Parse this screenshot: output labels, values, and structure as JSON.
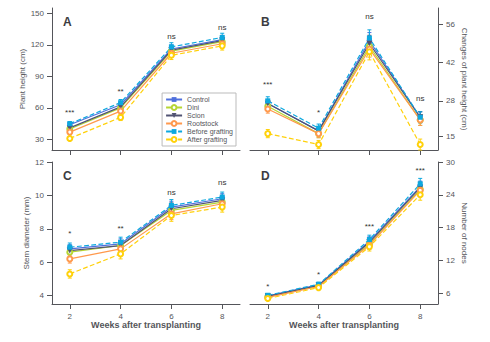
{
  "chart_data": [
    {
      "type": "line",
      "title": "A",
      "ylabel": "Plant height (cm)",
      "x": [
        2,
        4,
        6,
        8
      ],
      "xlim": [
        1.3,
        8.7
      ],
      "xticks": [
        2,
        4,
        6,
        8
      ],
      "ylim": [
        20,
        155
      ],
      "yticks": [
        30,
        60,
        90,
        120,
        150
      ],
      "grid": false,
      "tick_labels": "y",
      "legend": "lower right",
      "series": [
        {
          "name": "Control",
          "values": [
            44,
            63,
            116,
            125
          ],
          "errors": [
            2,
            3,
            4,
            4
          ],
          "marker": "square",
          "line_style": "solid"
        },
        {
          "name": "Dini",
          "values": [
            40,
            60,
            114,
            123
          ],
          "errors": [
            2,
            3,
            4,
            4
          ],
          "marker": "open circle",
          "line_style": "solid"
        },
        {
          "name": "Scion",
          "values": [
            41,
            61,
            115,
            124
          ],
          "errors": [
            2,
            3,
            4,
            4
          ],
          "marker": "triangle down",
          "line_style": "solid"
        },
        {
          "name": "Rootstock",
          "values": [
            37,
            57,
            112,
            121
          ],
          "errors": [
            2,
            3,
            4,
            4
          ],
          "marker": "open circle",
          "line_style": "solid"
        },
        {
          "name": "Before grafting",
          "values": [
            45,
            65,
            118,
            127
          ],
          "errors": [
            2,
            3,
            4,
            4
          ],
          "marker": "square",
          "line_style": "dashed"
        },
        {
          "name": "After grafting",
          "values": [
            31,
            51,
            110,
            119
          ],
          "errors": [
            2,
            3,
            4,
            4
          ],
          "marker": "open circle",
          "line_style": "dashed"
        }
      ],
      "annotations": [
        {
          "x": 2,
          "y": 51,
          "text": "***"
        },
        {
          "x": 4,
          "y": 71,
          "text": "**"
        },
        {
          "x": 6,
          "y": 123,
          "text": "ns"
        },
        {
          "x": 8,
          "y": 132,
          "text": "ns"
        }
      ]
    },
    {
      "type": "line",
      "title": "B",
      "ylabel": "Changes of plant height (cm)",
      "x": [
        2,
        4,
        6,
        8
      ],
      "xlim": [
        1.3,
        8.7
      ],
      "xticks": [
        2,
        4,
        6,
        8
      ],
      "ylim": [
        10,
        62
      ],
      "yticks": [
        15,
        28,
        42,
        56
      ],
      "grid": false,
      "tick_labels": "y",
      "series": [
        {
          "name": "Control",
          "values": [
            27,
            17,
            50,
            22
          ],
          "errors": [
            1.5,
            1.5,
            3,
            2
          ],
          "marker": "square",
          "line_style": "solid"
        },
        {
          "name": "Dini",
          "values": [
            26,
            16,
            48,
            21
          ],
          "errors": [
            1.5,
            1.5,
            3,
            2
          ],
          "marker": "open circle",
          "line_style": "solid"
        },
        {
          "name": "Scion",
          "values": [
            27,
            17,
            49,
            22
          ],
          "errors": [
            1.5,
            1.5,
            3,
            2
          ],
          "marker": "triangle down",
          "line_style": "solid"
        },
        {
          "name": "Rootstock",
          "values": [
            25,
            16,
            47,
            21
          ],
          "errors": [
            1.5,
            1.5,
            3,
            2
          ],
          "marker": "open circle",
          "line_style": "solid"
        },
        {
          "name": "Before grafting",
          "values": [
            28,
            18,
            51,
            22
          ],
          "errors": [
            1.5,
            1.5,
            3,
            2
          ],
          "marker": "square",
          "line_style": "dashed"
        },
        {
          "name": "After grafting",
          "values": [
            16,
            12,
            46,
            12
          ],
          "errors": [
            1.5,
            1.5,
            3,
            2
          ],
          "marker": "open circle",
          "line_style": "dashed"
        }
      ],
      "annotations": [
        {
          "x": 2,
          "y": 32,
          "text": "***"
        },
        {
          "x": 4,
          "y": 22,
          "text": "*"
        },
        {
          "x": 6,
          "y": 57,
          "text": "ns"
        },
        {
          "x": 8,
          "y": 27,
          "text": "ns"
        }
      ]
    },
    {
      "type": "line",
      "title": "C",
      "ylabel": "Stem diameter (mm)",
      "xlabel": "Weeks after transplanting",
      "x": [
        2,
        4,
        6,
        8
      ],
      "xlim": [
        1.3,
        8.7
      ],
      "xticks": [
        2,
        4,
        6,
        8
      ],
      "ylim": [
        3.5,
        12
      ],
      "yticks": [
        4,
        6,
        8,
        10,
        12
      ],
      "grid": false,
      "series": [
        {
          "name": "Control",
          "values": [
            6.8,
            7.1,
            9.3,
            9.8
          ],
          "errors": [
            0.25,
            0.3,
            0.35,
            0.3
          ],
          "marker": "square",
          "line_style": "solid"
        },
        {
          "name": "Dini",
          "values": [
            6.6,
            7.0,
            9.1,
            9.6
          ],
          "errors": [
            0.25,
            0.3,
            0.35,
            0.3
          ],
          "marker": "open circle",
          "line_style": "solid"
        },
        {
          "name": "Scion",
          "values": [
            6.7,
            7.0,
            9.2,
            9.7
          ],
          "errors": [
            0.25,
            0.3,
            0.35,
            0.3
          ],
          "marker": "triangle down",
          "line_style": "solid"
        },
        {
          "name": "Rootstock",
          "values": [
            6.2,
            6.8,
            8.9,
            9.5
          ],
          "errors": [
            0.25,
            0.3,
            0.35,
            0.3
          ],
          "marker": "open circle",
          "line_style": "solid"
        },
        {
          "name": "Before grafting",
          "values": [
            6.9,
            7.2,
            9.4,
            9.9
          ],
          "errors": [
            0.25,
            0.3,
            0.35,
            0.3
          ],
          "marker": "square",
          "line_style": "dashed"
        },
        {
          "name": "After grafting",
          "values": [
            5.3,
            6.5,
            8.8,
            9.3
          ],
          "errors": [
            0.25,
            0.3,
            0.35,
            0.3
          ],
          "marker": "open circle",
          "line_style": "dashed"
        }
      ],
      "annotations": [
        {
          "x": 2,
          "y": 7.4,
          "text": "*"
        },
        {
          "x": 4,
          "y": 7.7,
          "text": "**"
        },
        {
          "x": 6,
          "y": 9.9,
          "text": "ns"
        },
        {
          "x": 8,
          "y": 10.5,
          "text": "ns"
        }
      ]
    },
    {
      "type": "line",
      "title": "D",
      "ylabel": "Number of nodes",
      "xlabel": "Weeks after transplanting",
      "x": [
        2,
        4,
        6,
        8
      ],
      "xlim": [
        1.3,
        8.7
      ],
      "xticks": [
        2,
        4,
        6,
        8
      ],
      "ylim": [
        4,
        30
      ],
      "yticks": [
        6,
        12,
        18,
        24,
        30
      ],
      "grid": false,
      "series": [
        {
          "name": "Control",
          "values": [
            5.5,
            7.5,
            15.5,
            25.5
          ],
          "errors": [
            0.3,
            0.4,
            0.8,
            1.0
          ],
          "marker": "square",
          "line_style": "solid"
        },
        {
          "name": "Dini",
          "values": [
            5.3,
            7.3,
            15.0,
            25.0
          ],
          "errors": [
            0.3,
            0.4,
            0.8,
            1.0
          ],
          "marker": "open circle",
          "line_style": "solid"
        },
        {
          "name": "Scion",
          "values": [
            5.4,
            7.4,
            15.3,
            25.3
          ],
          "errors": [
            0.3,
            0.4,
            0.8,
            1.0
          ],
          "marker": "triangle down",
          "line_style": "solid"
        },
        {
          "name": "Rootstock",
          "values": [
            5.2,
            7.2,
            14.8,
            24.8
          ],
          "errors": [
            0.3,
            0.4,
            0.8,
            1.0
          ],
          "marker": "open circle",
          "line_style": "solid"
        },
        {
          "name": "Before grafting",
          "values": [
            5.6,
            7.6,
            15.8,
            26.0
          ],
          "errors": [
            0.3,
            0.4,
            0.8,
            1.0
          ],
          "marker": "square",
          "line_style": "dashed"
        },
        {
          "name": "After grafting",
          "values": [
            5.0,
            7.0,
            14.5,
            24.0
          ],
          "errors": [
            0.3,
            0.4,
            0.8,
            1.0
          ],
          "marker": "open circle",
          "line_style": "dashed"
        }
      ],
      "annotations": [
        {
          "x": 2,
          "y": 6.2,
          "text": "*"
        },
        {
          "x": 4,
          "y": 8.4,
          "text": "*"
        },
        {
          "x": 6,
          "y": 17.2,
          "text": "***"
        },
        {
          "x": 8,
          "y": 27.5,
          "text": "***"
        }
      ]
    }
  ]
}
